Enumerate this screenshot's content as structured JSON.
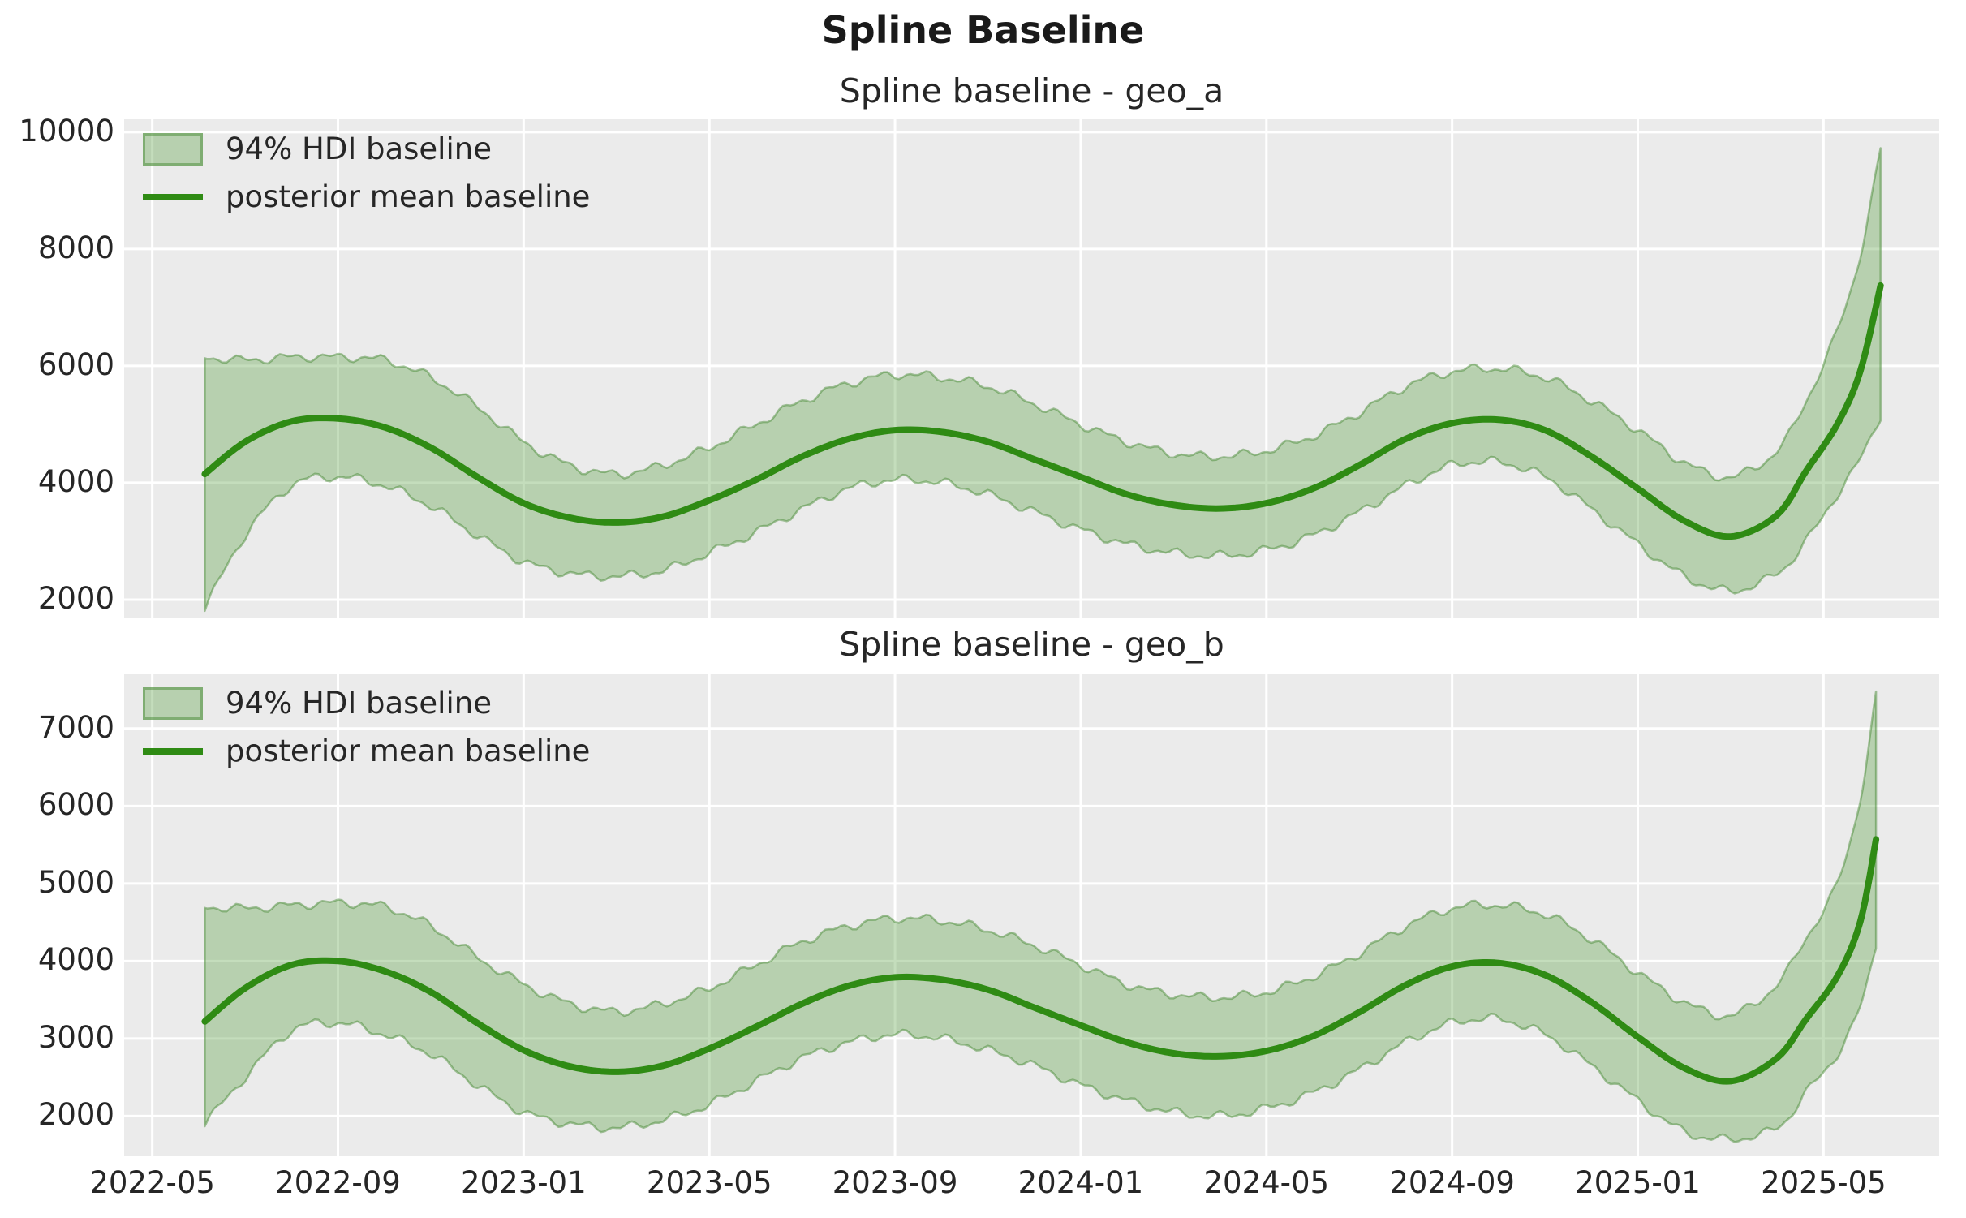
{
  "figure": {
    "title": "Spline Baseline"
  },
  "colors": {
    "axes_background": "#ebebeb",
    "grid": "#ffffff",
    "mean_line": "#2f8b14",
    "band_fill": "rgba(86,158,62,0.35)",
    "band_edge": "rgba(60,130,40,0.45)",
    "text": "#262626"
  },
  "chart_data": [
    {
      "type": "area",
      "title": "Spline baseline - geo_a",
      "geo": "geo_a",
      "legend_labels": [
        "94% HDI baseline",
        "posterior mean baseline"
      ],
      "legend_position": "upper left",
      "grid": true,
      "ylim": [
        1680,
        10220
      ],
      "yticks": [
        2000,
        4000,
        6000,
        8000,
        10000
      ],
      "xlim_dates": [
        "2022-04-13",
        "2025-07-16"
      ],
      "xticks": [
        {
          "date": "2022-05-01",
          "label": "2022-05"
        },
        {
          "date": "2022-09-01",
          "label": "2022-09"
        },
        {
          "date": "2023-01-01",
          "label": "2023-01"
        },
        {
          "date": "2023-05-01",
          "label": "2023-05"
        },
        {
          "date": "2023-09-01",
          "label": "2023-09"
        },
        {
          "date": "2024-01-01",
          "label": "2024-01"
        },
        {
          "date": "2024-05-01",
          "label": "2024-05"
        },
        {
          "date": "2024-09-01",
          "label": "2024-09"
        },
        {
          "date": "2025-01-01",
          "label": "2025-01"
        },
        {
          "date": "2025-05-01",
          "label": "2025-05"
        }
      ],
      "xtick_labels_visible": false,
      "series_columns": [
        "date",
        "hdi_low",
        "mean",
        "hdi_high"
      ],
      "series_rows": [
        [
          "2022-06-05",
          1850,
          4150,
          6150
        ],
        [
          "2022-07-01",
          3100,
          4700,
          6100
        ],
        [
          "2022-08-01",
          3950,
          5050,
          6150
        ],
        [
          "2022-09-01",
          4100,
          5100,
          6150
        ],
        [
          "2022-10-01",
          3950,
          4950,
          6100
        ],
        [
          "2022-11-01",
          3600,
          4600,
          5800
        ],
        [
          "2022-12-01",
          3100,
          4100,
          5300
        ],
        [
          "2023-01-01",
          2650,
          3650,
          4700
        ],
        [
          "2023-02-01",
          2450,
          3400,
          4300
        ],
        [
          "2023-03-01",
          2400,
          3320,
          4150
        ],
        [
          "2023-04-01",
          2500,
          3420,
          4300
        ],
        [
          "2023-05-01",
          2800,
          3700,
          4600
        ],
        [
          "2023-06-01",
          3150,
          4050,
          5000
        ],
        [
          "2023-07-01",
          3550,
          4450,
          5400
        ],
        [
          "2023-08-01",
          3900,
          4750,
          5700
        ],
        [
          "2023-09-01",
          4050,
          4900,
          5850
        ],
        [
          "2023-10-01",
          4000,
          4870,
          5800
        ],
        [
          "2023-11-01",
          3800,
          4700,
          5650
        ],
        [
          "2023-12-01",
          3500,
          4400,
          5350
        ],
        [
          "2024-01-01",
          3200,
          4100,
          5000
        ],
        [
          "2024-02-01",
          2950,
          3800,
          4700
        ],
        [
          "2024-03-01",
          2800,
          3620,
          4500
        ],
        [
          "2024-04-01",
          2750,
          3560,
          4450
        ],
        [
          "2024-05-01",
          2850,
          3650,
          4550
        ],
        [
          "2024-06-01",
          3100,
          3900,
          4800
        ],
        [
          "2024-07-01",
          3500,
          4300,
          5200
        ],
        [
          "2024-08-01",
          3950,
          4750,
          5650
        ],
        [
          "2024-09-01",
          4300,
          5020,
          5900
        ],
        [
          "2024-10-01",
          4350,
          5080,
          5950
        ],
        [
          "2024-11-01",
          4100,
          4900,
          5800
        ],
        [
          "2024-12-01",
          3550,
          4450,
          5400
        ],
        [
          "2025-01-01",
          2950,
          3900,
          4900
        ],
        [
          "2025-02-01",
          2400,
          3350,
          4350
        ],
        [
          "2025-03-01",
          2150,
          3080,
          4100
        ],
        [
          "2025-04-01",
          2450,
          3450,
          4550
        ],
        [
          "2025-04-20",
          3000,
          4200,
          5400
        ],
        [
          "2025-05-10",
          3800,
          5000,
          6600
        ],
        [
          "2025-05-25",
          4400,
          5900,
          7900
        ],
        [
          "2025-06-08",
          5150,
          7375,
          9700
        ]
      ]
    },
    {
      "type": "area",
      "title": "Spline baseline - geo_b",
      "geo": "geo_b",
      "legend_labels": [
        "94% HDI baseline",
        "posterior mean baseline"
      ],
      "legend_position": "upper left",
      "grid": true,
      "ylim": [
        1480,
        7710
      ],
      "yticks": [
        2000,
        3000,
        4000,
        5000,
        6000,
        7000
      ],
      "xlim_dates": [
        "2022-04-13",
        "2025-07-16"
      ],
      "xticks": [
        {
          "date": "2022-05-01",
          "label": "2022-05"
        },
        {
          "date": "2022-09-01",
          "label": "2022-09"
        },
        {
          "date": "2023-01-01",
          "label": "2023-01"
        },
        {
          "date": "2023-05-01",
          "label": "2023-05"
        },
        {
          "date": "2023-09-01",
          "label": "2023-09"
        },
        {
          "date": "2024-01-01",
          "label": "2024-01"
        },
        {
          "date": "2024-05-01",
          "label": "2024-05"
        },
        {
          "date": "2024-09-01",
          "label": "2024-09"
        },
        {
          "date": "2025-01-01",
          "label": "2025-01"
        },
        {
          "date": "2025-05-01",
          "label": "2025-05"
        }
      ],
      "xtick_labels_visible": true,
      "series_columns": [
        "date",
        "hdi_low",
        "mean",
        "hdi_high"
      ],
      "series_rows": [
        [
          "2022-06-05",
          1900,
          3220,
          4700
        ],
        [
          "2022-07-01",
          2500,
          3650,
          4680
        ],
        [
          "2022-08-01",
          3100,
          3950,
          4720
        ],
        [
          "2022-09-01",
          3200,
          4000,
          4750
        ],
        [
          "2022-10-01",
          3050,
          3870,
          4700
        ],
        [
          "2022-11-01",
          2800,
          3600,
          4450
        ],
        [
          "2022-12-01",
          2400,
          3200,
          4050
        ],
        [
          "2023-01-01",
          2050,
          2850,
          3700
        ],
        [
          "2023-02-01",
          1900,
          2640,
          3450
        ],
        [
          "2023-03-01",
          1850,
          2570,
          3350
        ],
        [
          "2023-04-01",
          1950,
          2650,
          3450
        ],
        [
          "2023-05-01",
          2150,
          2870,
          3650
        ],
        [
          "2023-06-01",
          2450,
          3150,
          3950
        ],
        [
          "2023-07-01",
          2750,
          3450,
          4250
        ],
        [
          "2023-08-01",
          2950,
          3680,
          4450
        ],
        [
          "2023-09-01",
          3050,
          3790,
          4550
        ],
        [
          "2023-10-01",
          3000,
          3760,
          4520
        ],
        [
          "2023-11-01",
          2850,
          3630,
          4400
        ],
        [
          "2023-12-01",
          2650,
          3400,
          4200
        ],
        [
          "2024-01-01",
          2400,
          3170,
          3950
        ],
        [
          "2024-02-01",
          2200,
          2950,
          3700
        ],
        [
          "2024-03-01",
          2050,
          2810,
          3570
        ],
        [
          "2024-04-01",
          2000,
          2770,
          3530
        ],
        [
          "2024-05-01",
          2100,
          2840,
          3600
        ],
        [
          "2024-06-01",
          2300,
          3030,
          3800
        ],
        [
          "2024-07-01",
          2600,
          3340,
          4100
        ],
        [
          "2024-08-01",
          2950,
          3690,
          4450
        ],
        [
          "2024-09-01",
          3200,
          3930,
          4680
        ],
        [
          "2024-10-01",
          3250,
          3975,
          4720
        ],
        [
          "2024-11-01",
          3050,
          3820,
          4600
        ],
        [
          "2024-12-01",
          2650,
          3470,
          4280
        ],
        [
          "2025-01-01",
          2200,
          3020,
          3850
        ],
        [
          "2025-02-01",
          1800,
          2620,
          3470
        ],
        [
          "2025-03-01",
          1700,
          2450,
          3300
        ],
        [
          "2025-04-01",
          1850,
          2750,
          3700
        ],
        [
          "2025-04-20",
          2300,
          3250,
          4300
        ],
        [
          "2025-05-10",
          2800,
          3800,
          5000
        ],
        [
          "2025-05-25",
          3400,
          4500,
          6100
        ],
        [
          "2025-06-05",
          4200,
          5570,
          7430
        ]
      ]
    }
  ]
}
